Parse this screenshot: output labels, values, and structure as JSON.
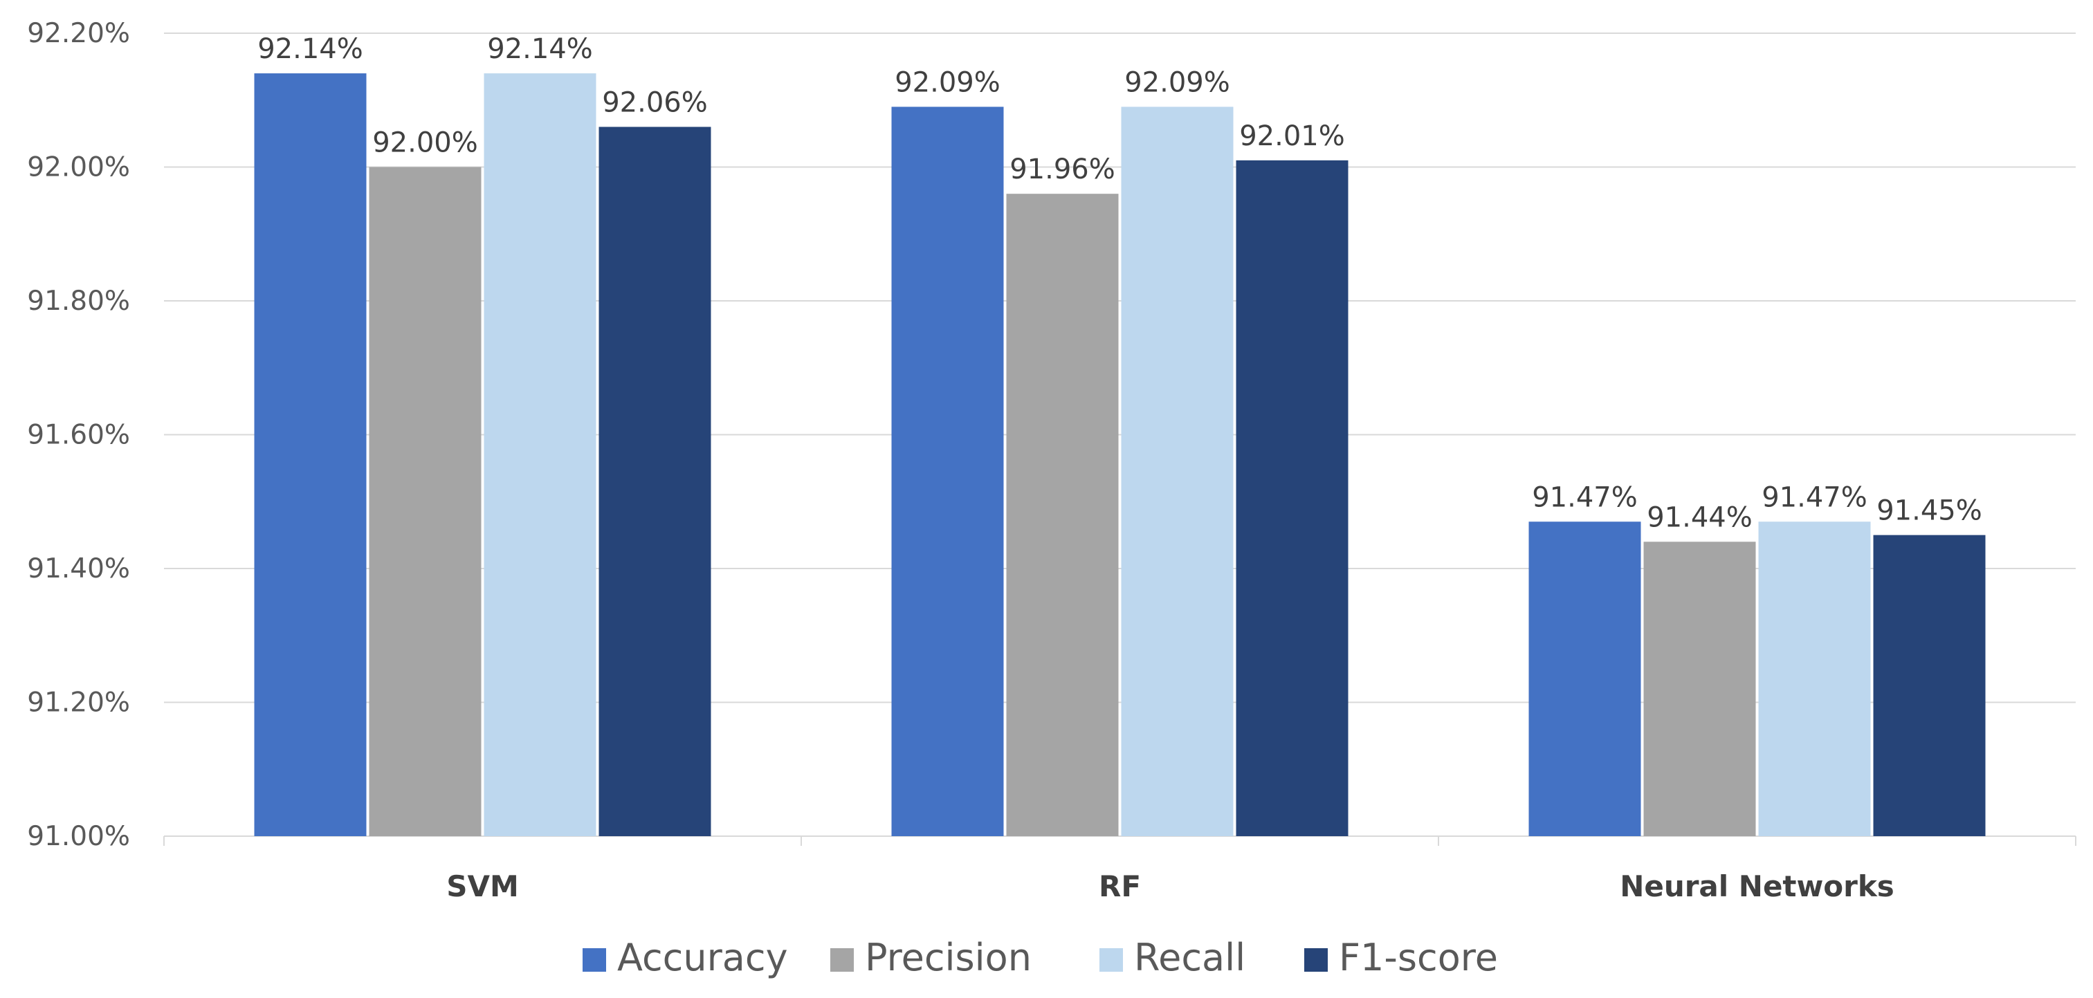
{
  "chart_data": {
    "type": "bar",
    "categories": [
      "SVM",
      "RF",
      "Neural Networks"
    ],
    "series": [
      {
        "name": "Accuracy",
        "values": [
          92.14,
          92.09,
          91.47
        ],
        "color": "#4472C4"
      },
      {
        "name": "Precision",
        "values": [
          92.0,
          91.96,
          91.44
        ],
        "color": "#A5A5A5"
      },
      {
        "name": "Recall",
        "values": [
          92.14,
          92.09,
          91.47
        ],
        "color": "#BDD7EE"
      },
      {
        "name": "F1-score",
        "values": [
          92.06,
          92.01,
          91.45
        ],
        "color": "#264478"
      }
    ],
    "data_labels": [
      [
        "92.14%",
        "92.00%",
        "92.14%",
        "92.06%"
      ],
      [
        "92.09%",
        "91.96%",
        "92.09%",
        "92.01%"
      ],
      [
        "91.47%",
        "91.44%",
        "91.47%",
        "91.45%"
      ]
    ],
    "y_ticks": [
      "91.00%",
      "91.20%",
      "91.40%",
      "91.60%",
      "91.80%",
      "92.00%",
      "92.20%"
    ],
    "ylim": [
      91.0,
      92.2
    ],
    "grid": true,
    "legend_position": "bottom",
    "title": "",
    "xlabel": "",
    "ylabel": ""
  }
}
